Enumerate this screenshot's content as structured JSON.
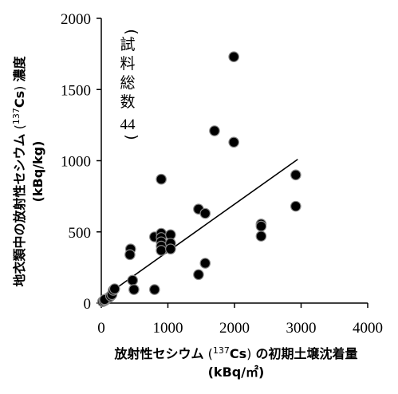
{
  "chart_data": {
    "type": "scatter",
    "xlabel": "放射性セシウム (137Cs) の初期土壌沈着量",
    "xlabel_line1_pre": "放射性セシウム",
    "xlabel_line1_sup": "137",
    "xlabel_line1_iso": "Cs",
    "xlabel_line1_post": "の初期土壌沈着量",
    "xlabel_unit": "(kBq/㎡)",
    "ylabel": "地衣類中の放射性セシウム (137Cs) 濃度",
    "ylabel_line1_pre": "地衣類中の放射性セシウム",
    "ylabel_line1_sup": "137",
    "ylabel_line1_iso": "Cs",
    "ylabel_line1_post": "濃度",
    "ylabel_unit": "(kBq/kg)",
    "xlim": [
      0,
      4000
    ],
    "ylim": [
      0,
      2000
    ],
    "x_ticks": [
      0,
      1000,
      2000,
      3000,
      4000
    ],
    "y_ticks": [
      0,
      500,
      1000,
      1500,
      2000
    ],
    "x_tick_labels": [
      "0",
      "1000",
      "2000",
      "3000",
      "4000"
    ],
    "y_tick_labels": [
      "0",
      "500",
      "1000",
      "1500",
      "2000"
    ],
    "grid": false,
    "annotation_chars": [
      "試",
      "料",
      "総",
      "数"
    ],
    "annotation_number": "44",
    "marker_color": "#000000",
    "series": [
      {
        "points": [
          [
            20,
            10
          ],
          [
            40,
            15
          ],
          [
            60,
            20
          ],
          [
            80,
            30
          ],
          [
            100,
            35
          ],
          [
            120,
            40
          ],
          [
            50,
            25
          ],
          [
            140,
            50
          ],
          [
            160,
            60
          ],
          [
            180,
            90
          ],
          [
            200,
            100
          ],
          [
            440,
            380
          ],
          [
            430,
            340
          ],
          [
            470,
            160
          ],
          [
            490,
            95
          ],
          [
            800,
            95
          ],
          [
            800,
            465
          ],
          [
            900,
            870
          ],
          [
            900,
            490
          ],
          [
            900,
            460
          ],
          [
            900,
            430
          ],
          [
            900,
            400
          ],
          [
            900,
            370
          ],
          [
            1040,
            480
          ],
          [
            1040,
            420
          ],
          [
            1040,
            380
          ],
          [
            1460,
            660
          ],
          [
            1460,
            200
          ],
          [
            1560,
            630
          ],
          [
            1560,
            280
          ],
          [
            1700,
            1210
          ],
          [
            1990,
            1730
          ],
          [
            1990,
            1130
          ],
          [
            2400,
            555
          ],
          [
            2400,
            540
          ],
          [
            2400,
            470
          ],
          [
            2920,
            900
          ],
          [
            2920,
            680
          ]
        ]
      }
    ],
    "trendline": {
      "x": [
        150,
        2950
      ],
      "y": [
        80,
        1010
      ]
    }
  }
}
